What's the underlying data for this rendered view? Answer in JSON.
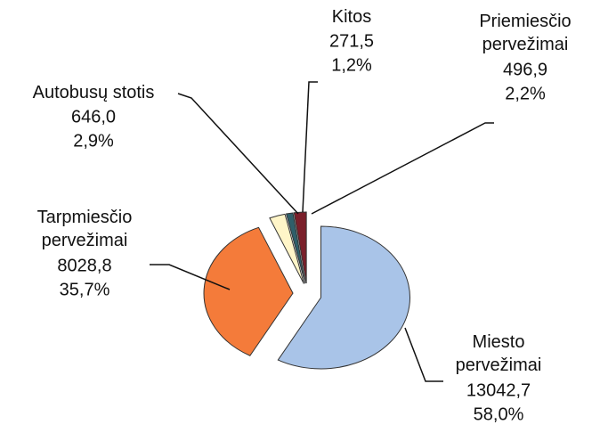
{
  "chart_data": {
    "type": "pie",
    "categories": [
      "Miesto\npervežimai",
      "Tarpmiesčio\npervežimai",
      "Autobusų stotis",
      "Kitos",
      "Priemiesčio\npervežimai"
    ],
    "values": [
      13042.7,
      8028.8,
      646.0,
      271.5,
      496.9
    ],
    "value_labels": [
      "13042,7",
      "8028,8",
      "646,0",
      "271,5",
      "496,9"
    ],
    "percents": [
      58.0,
      35.7,
      2.9,
      1.2,
      2.2
    ],
    "percent_labels": [
      "58,0%",
      "35,7%",
      "2,9%",
      "1,2%",
      "2,2%"
    ],
    "colors": [
      "#a9c4e8",
      "#f47b3a",
      "#fff5c8",
      "#2f5f6a",
      "#7a1f2a"
    ]
  }
}
